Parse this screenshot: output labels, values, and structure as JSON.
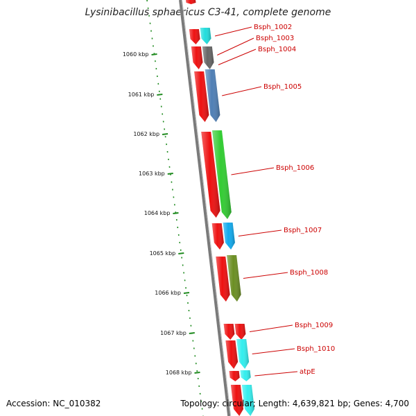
{
  "title": "Lysinibacillus sphaericus C3-41, complete genome",
  "accession": "Accession: NC_010382",
  "topology": "Topology: circular; Length: 4,639,821 bp; Genes: 4,700",
  "colors": {
    "backbone": "#7a7a7a",
    "tick": "#1e8a1e",
    "label": "#cc0000",
    "orf_red": "#ee1111",
    "cyan": "#22dddd",
    "gray": "#666666",
    "steelblue": "#4f7fb5",
    "green": "#33cc33",
    "deepskyblue": "#11aaee",
    "olive": "#6b8e23",
    "aqua": "#33eeee"
  },
  "scale": {
    "ticks": [
      "1060 kbp",
      "1061 kbp",
      "1062 kbp",
      "1063 kbp",
      "1064 kbp",
      "1065 kbp",
      "1066 kbp",
      "1067 kbp",
      "1068 kbp"
    ]
  },
  "genes": [
    {
      "label": "Bsph_1002",
      "color": "cyan"
    },
    {
      "label": "Bsph_1003",
      "color": "gray"
    },
    {
      "label": "Bsph_1004",
      "color": "gray"
    },
    {
      "label": "Bsph_1005",
      "color": "steelblue"
    },
    {
      "label": "Bsph_1006",
      "color": "green"
    },
    {
      "label": "Bsph_1007",
      "color": "deepskyblue"
    },
    {
      "label": "Bsph_1008",
      "color": "olive"
    },
    {
      "label": "Bsph_1009",
      "color": "orf_red"
    },
    {
      "label": "Bsph_1010",
      "color": "aqua"
    },
    {
      "label": "atpE",
      "color": "aqua"
    }
  ]
}
